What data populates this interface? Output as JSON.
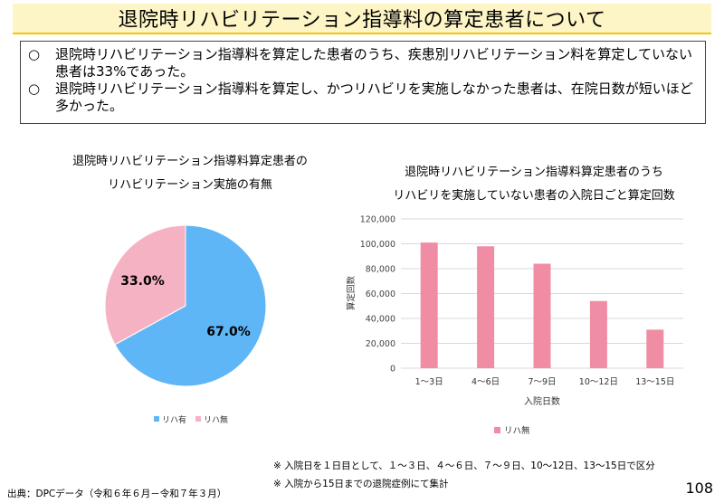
{
  "title": "退院時リハビリテーション指導料の算定患者について",
  "summary": [
    {
      "mark": "○",
      "text": "退院時リハビリテーション指導料を算定した患者のうち、疾患別リハビリテーション料を算定していない患者は33%であった。"
    },
    {
      "mark": "○",
      "text": "退院時リハビリテーション指導料を算定し、かつリハビリを実施しなかった患者は、在院日数が短いほど多かった。"
    }
  ],
  "pie_title_line1": "退院時リハビリテーション指導料算定患者の",
  "pie_title_line2": "リハビリテーション実施の有無",
  "bar_title_line1": "退院時リハビリテーション指導料算定患者のうち",
  "bar_title_line2": "リハビリを実施していない患者の入院日ごと算定回数",
  "notes": [
    "※ 入院日を１日目として、１～３日、４～６日、７～９日、10～12日、13～15日で区分",
    "※ 入院から15日までの退院症例にて集計"
  ],
  "source": "出典：DPCデータ（令和６年６月－令和７年３月）",
  "page_number": "108",
  "colors": {
    "pie_yes": "#5fb6f7",
    "pie_no": "#f5b2c2",
    "bar": "#f08da4",
    "title_bg": "#fdf5c6",
    "title_border": "#f0c800"
  },
  "chart_data": [
    {
      "type": "pie",
      "slices": [
        {
          "name": "リハ有",
          "value": 67.0,
          "label": "67.0%",
          "color": "#5fb6f7"
        },
        {
          "name": "リハ無",
          "value": 33.0,
          "label": "33.0%",
          "color": "#f5b2c2"
        }
      ],
      "legend": [
        "リハ有",
        "リハ無"
      ],
      "legend_position": "bottom"
    },
    {
      "type": "bar",
      "categories": [
        "1～3日",
        "4～6日",
        "7～9日",
        "10～12日",
        "13～15日"
      ],
      "series": [
        {
          "name": "リハ無",
          "values": [
            101000,
            98000,
            84000,
            54000,
            31000
          ]
        }
      ],
      "ylabel": "算定回数",
      "xlabel": "入院日数",
      "ylim": [
        0,
        120000
      ],
      "yticks": [
        "0",
        "20,000",
        "40,000",
        "60,000",
        "80,000",
        "100,000",
        "120,000"
      ],
      "grid": true,
      "legend_position": "bottom"
    }
  ]
}
